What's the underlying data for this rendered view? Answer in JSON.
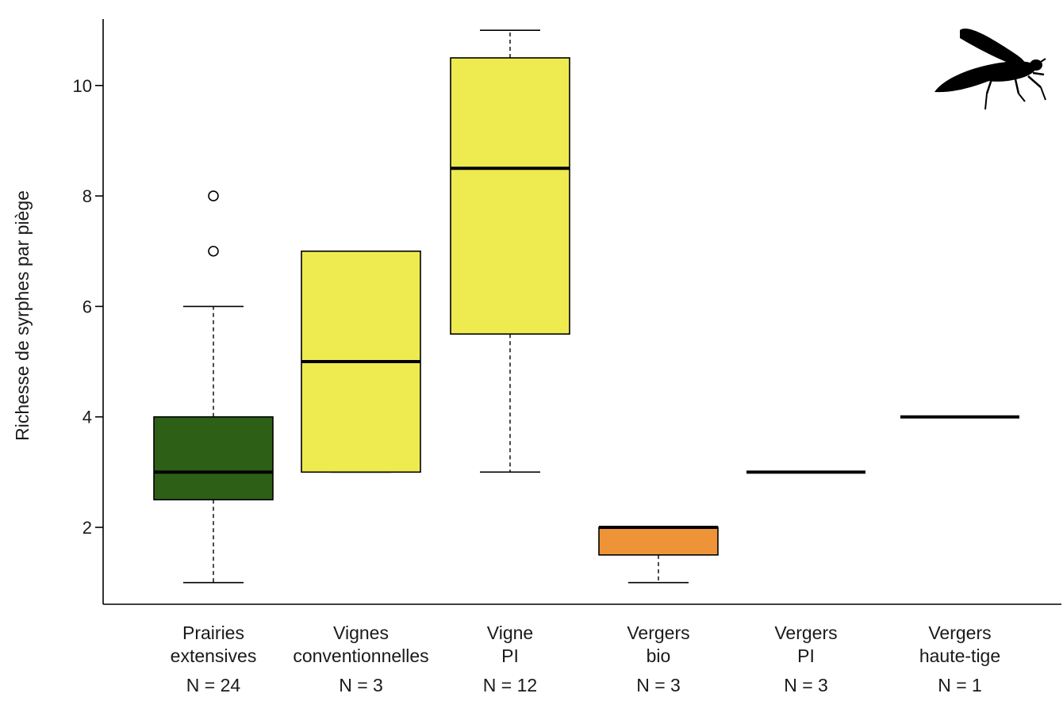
{
  "chart_data": {
    "type": "boxplot",
    "title": "",
    "xlabel": "",
    "ylabel": "Richesse de syrphes par piège",
    "ylim": [
      0.6,
      11.3
    ],
    "yticks": [
      2,
      4,
      6,
      8,
      10
    ],
    "ytick_labels": [
      "2",
      "4",
      "6",
      "8",
      "10"
    ],
    "grid": false,
    "legend": "none",
    "icon": "hoverfly-silhouette-icon",
    "categories": [
      {
        "label_lines": [
          "Prairies",
          "extensives"
        ],
        "n_label": "N = 24",
        "color": "#2d6016",
        "whisker_low": 1,
        "q1": 2.5,
        "median": 3,
        "q3": 4,
        "whisker_high": 6,
        "outliers": [
          7,
          8
        ]
      },
      {
        "label_lines": [
          "Vignes",
          "conventionnelles"
        ],
        "n_label": "N = 3",
        "color": "#edeb50",
        "whisker_low": 3,
        "q1": 3,
        "median": 5,
        "q3": 7,
        "whisker_high": 7,
        "outliers": []
      },
      {
        "label_lines": [
          "Vigne",
          "PI"
        ],
        "n_label": "N = 12",
        "color": "#edeb50",
        "whisker_low": 3,
        "q1": 5.5,
        "median": 8.5,
        "q3": 10.5,
        "whisker_high": 11,
        "outliers": []
      },
      {
        "label_lines": [
          "Vergers",
          "bio"
        ],
        "n_label": "N = 3",
        "color": "#ee9338",
        "whisker_low": 1,
        "q1": 1.5,
        "median": 2,
        "q3": 2,
        "whisker_high": 2,
        "outliers": []
      },
      {
        "label_lines": [
          "Vergers",
          "PI"
        ],
        "n_label": "N = 3",
        "color": "#ffffff",
        "whisker_low": 3,
        "q1": 3,
        "median": 3,
        "q3": 3,
        "whisker_high": 3,
        "outliers": []
      },
      {
        "label_lines": [
          "Vergers",
          "haute-tige"
        ],
        "n_label": "N = 1",
        "color": "#ffffff",
        "whisker_low": 4,
        "q1": 4,
        "median": 4,
        "q3": 4,
        "whisker_high": 4,
        "outliers": []
      }
    ]
  }
}
